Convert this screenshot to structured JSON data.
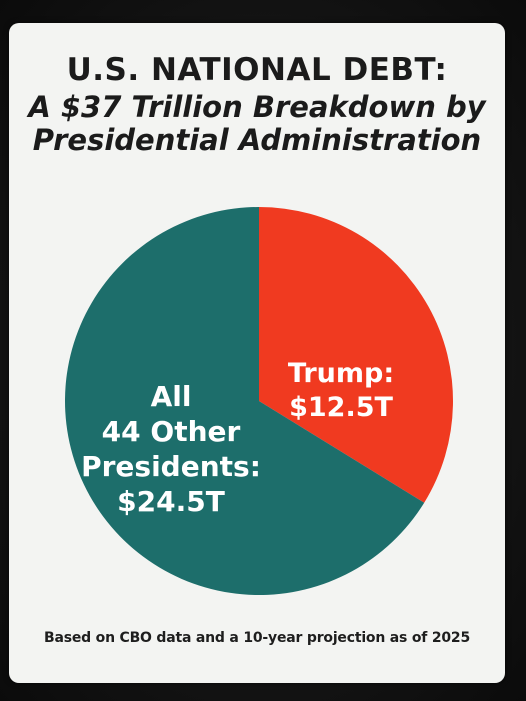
{
  "header": {
    "title": "U.S. NATIONAL DEBT:",
    "subtitle": "A $37 Trillion Breakdown by Presidential Administration"
  },
  "chart_data": {
    "type": "pie",
    "title": "U.S. NATIONAL DEBT:",
    "subtitle": "A $37 Trillion Breakdown by Presidential Administration",
    "unit": "trillion USD",
    "slices": [
      {
        "label": "Trump:\n$12.5T",
        "value": 12.5,
        "color": "#f03a20"
      },
      {
        "label": "All\n44 Other\nPresidents:\n$24.5T",
        "value": 24.5,
        "color": "#1d6e6b"
      }
    ],
    "legend": "none"
  },
  "footer": {
    "note": "Based on CBO data and a 10-year projection as of 2025"
  }
}
